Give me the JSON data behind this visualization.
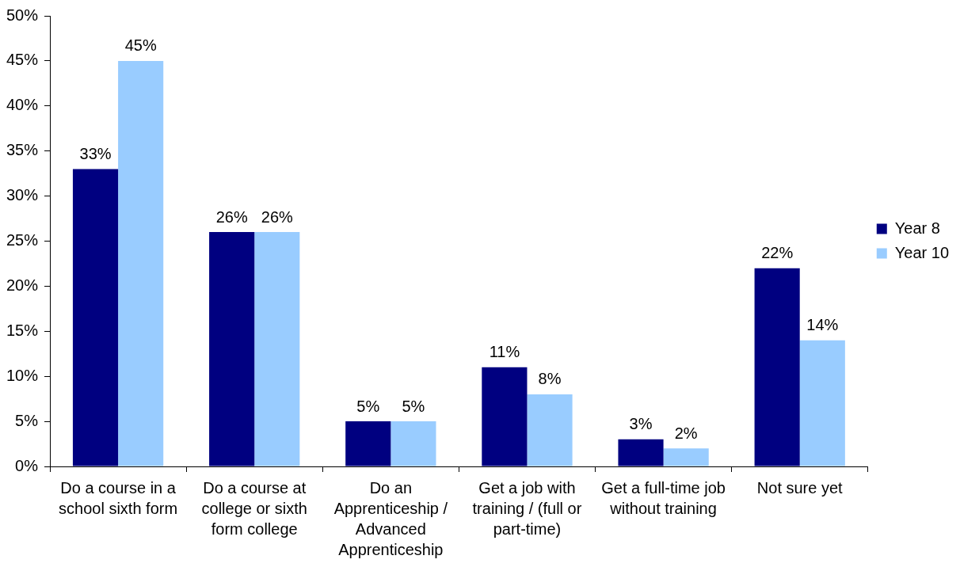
{
  "chart_data": {
    "type": "bar",
    "categories": [
      "Do a course in a school sixth form",
      "Do a course at college or sixth form college",
      "Do an Apprenticeship / Advanced Apprenticeship",
      "Get a job with training / (full or part-time)",
      "Get a full-time job without training",
      "Not sure yet"
    ],
    "series": [
      {
        "name": "Year 8",
        "color": "#000080",
        "values": [
          33,
          26,
          5,
          11,
          3,
          22
        ],
        "value_labels": [
          "33%",
          "26%",
          "5%",
          "11%",
          "3%",
          "22%"
        ]
      },
      {
        "name": "Year 10",
        "color": "#99ccff",
        "values": [
          45,
          26,
          5,
          8,
          2,
          14
        ],
        "value_labels": [
          "45%",
          "26%",
          "5%",
          "8%",
          "2%",
          "14%"
        ]
      }
    ],
    "ylim": [
      0,
      50
    ],
    "yticks": [
      {
        "value": 0,
        "label": "0%"
      },
      {
        "value": 5,
        "label": "5%"
      },
      {
        "value": 10,
        "label": "10%"
      },
      {
        "value": 15,
        "label": "15%"
      },
      {
        "value": 20,
        "label": "20%"
      },
      {
        "value": 25,
        "label": "25%"
      },
      {
        "value": 30,
        "label": "30%"
      },
      {
        "value": 35,
        "label": "35%"
      },
      {
        "value": 40,
        "label": "40%"
      },
      {
        "value": 45,
        "label": "45%"
      },
      {
        "value": 50,
        "label": "50%"
      }
    ],
    "grid": false,
    "legend": "right"
  }
}
